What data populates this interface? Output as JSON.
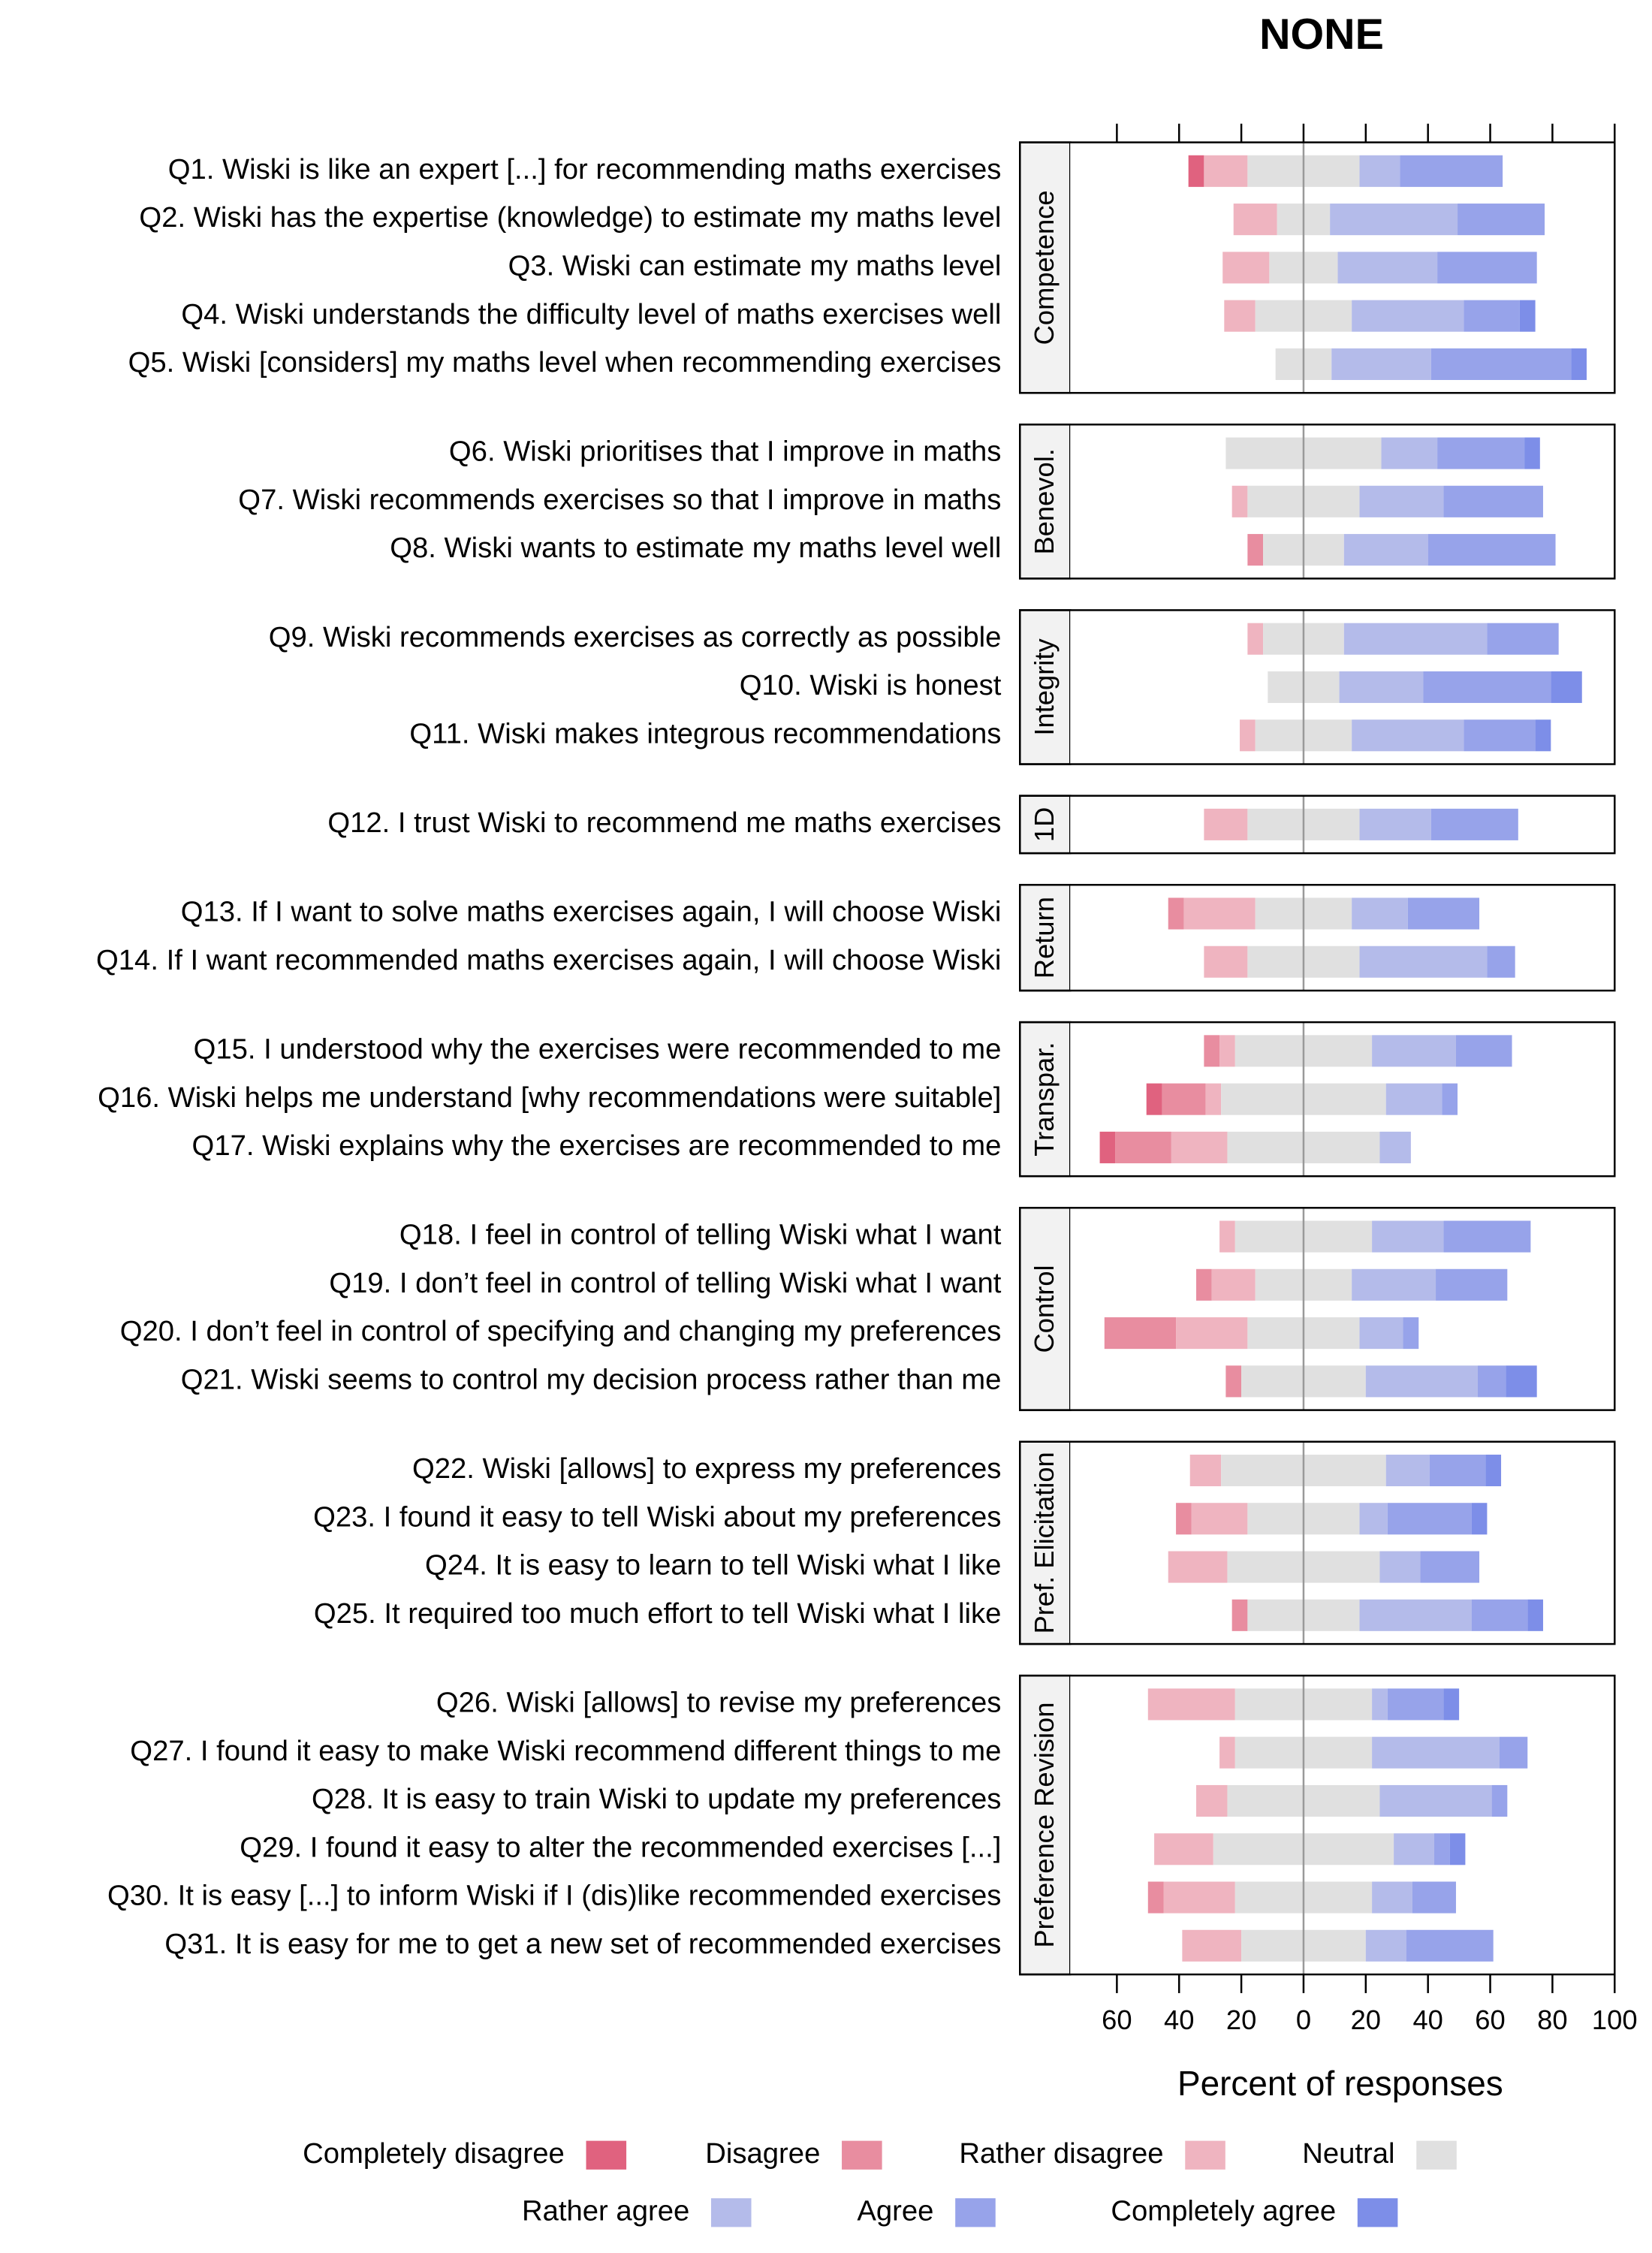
{
  "chart_data": {
    "type": "likert",
    "title": "NONE",
    "xlabel": "Percent of responses",
    "xlim": [
      -75,
      100
    ],
    "xticks": [
      {
        "value": -60,
        "label": "60"
      },
      {
        "value": -40,
        "label": "40"
      },
      {
        "value": -20,
        "label": "20"
      },
      0,
      20,
      40,
      60,
      80,
      100
    ],
    "panels": [
      {
        "label": "Competence",
        "categories": [
          "Q1. Wiski is like an expert [...] for recommending maths exercises",
          "Q2. Wiski has the expertise (knowledge) to estimate my maths level",
          "Q3. Wiski can estimate my maths level",
          "Q4. Wiski understands the difficulty level of maths exercises well",
          "Q5. Wiski [considers] my maths level when recommending exercises"
        ]
      },
      {
        "label": "Benevol.",
        "categories": [
          "Q6. Wiski prioritises that I improve in maths",
          "Q7. Wiski recommends exercises so that I improve in maths",
          "Q8. Wiski wants to estimate my maths level well"
        ]
      },
      {
        "label": "Integrity",
        "categories": [
          "Q9. Wiski recommends exercises as correctly as possible",
          "Q10. Wiski is honest",
          "Q11. Wiski makes integrous recommendations"
        ]
      },
      {
        "label": "1D",
        "categories": [
          "Q12. I trust Wiski to recommend me maths exercises"
        ]
      },
      {
        "label": "Return",
        "categories": [
          "Q13. If I want to solve maths exercises again, I will choose Wiski",
          "Q14. If I want recommended maths exercises again, I will choose Wiski"
        ]
      },
      {
        "label": "Transpar.",
        "categories": [
          "Q15. I understood why the exercises were recommended to me",
          "Q16. Wiski helps me understand [why recommendations were suitable]",
          "Q17. Wiski explains why the exercises are recommended to me"
        ]
      },
      {
        "label": "Control",
        "categories": [
          "Q18. I feel in control of telling Wiski what I want",
          "Q19. I don’t feel in control of telling Wiski what I want",
          "Q20. I don’t feel in control of specifying and changing my preferences",
          "Q21. Wiski seems to control my decision process rather than me"
        ]
      },
      {
        "label": "Pref. Elicitation",
        "categories": [
          "Q22. Wiski [allows] to express my preferences",
          "Q23. I found it easy to tell Wiski about my preferences",
          "Q24. It is easy to learn to tell Wiski what I like",
          "Q25. It required too much effort to tell Wiski what I like"
        ]
      },
      {
        "label": "Preference Revision",
        "categories": [
          "Q26. Wiski [allows] to revise my preferences",
          "Q27. I found it easy to make Wiski recommend different things to me",
          "Q28. It is easy to train Wiski to update my preferences",
          "Q29. I found it easy to alter the recommended exercises [...]",
          "Q30. It is easy [...] to inform Wiski if I (dis)like recommended exercises",
          "Q31. It is easy for me to get a new set of recommended exercises"
        ]
      }
    ],
    "series": [
      {
        "name": "Completely disagree",
        "color": "#e0627f",
        "side": "left",
        "values": [
          5,
          0,
          0,
          0,
          0,
          0,
          0,
          0,
          0,
          0,
          0,
          0,
          0,
          0,
          0,
          5,
          5,
          0,
          0,
          0,
          0,
          0,
          0,
          0,
          0,
          0,
          0,
          0,
          0,
          0,
          0
        ]
      },
      {
        "name": "Disagree",
        "color": "#e88da0",
        "side": "left",
        "values": [
          0,
          0,
          0,
          0,
          0,
          0,
          0,
          5,
          0,
          0,
          0,
          0,
          5,
          0,
          5,
          14,
          18,
          0,
          5,
          23,
          5,
          0,
          5,
          0,
          5,
          0,
          0,
          0,
          0,
          5,
          0
        ]
      },
      {
        "name": "Rather disagree",
        "color": "#efb4c0",
        "side": "left",
        "values": [
          14,
          14,
          15,
          10,
          0,
          0,
          5,
          0,
          5,
          0,
          5,
          14,
          23,
          14,
          5,
          5,
          18,
          5,
          14,
          23,
          0,
          10,
          18,
          19,
          0,
          28,
          5,
          10,
          19,
          23,
          19
        ]
      },
      {
        "name": "Neutral",
        "color": "#e0e0e0",
        "side": "center",
        "values": [
          36,
          17,
          22,
          31,
          18,
          50,
          36,
          26,
          26,
          23,
          31,
          36,
          31,
          36,
          44,
          53,
          49,
          44,
          31,
          36,
          40,
          53,
          36,
          49,
          36,
          44,
          44,
          49,
          58,
          44,
          40
        ]
      },
      {
        "name": "Rather agree",
        "color": "#b4bbea",
        "side": "right",
        "values": [
          13,
          41,
          32,
          36,
          32,
          18,
          27,
          27,
          46,
          27,
          36,
          23,
          18,
          41,
          27,
          18,
          10,
          23,
          27,
          14,
          36,
          14,
          9,
          13,
          36,
          5,
          41,
          36,
          13,
          13,
          13
        ]
      },
      {
        "name": "Agree",
        "color": "#97a3ea",
        "side": "right",
        "values": [
          33,
          28,
          32,
          18,
          45,
          28,
          32,
          41,
          23,
          41,
          23,
          28,
          23,
          9,
          18,
          5,
          0,
          28,
          23,
          5,
          9,
          18,
          27,
          19,
          18,
          18,
          9,
          5,
          5,
          14,
          28
        ]
      },
      {
        "name": "Completely agree",
        "color": "#7d8ee8",
        "side": "right",
        "values": [
          0,
          0,
          0,
          5,
          5,
          5,
          0,
          0,
          0,
          10,
          5,
          0,
          0,
          0,
          0,
          0,
          0,
          0,
          0,
          0,
          10,
          5,
          5,
          0,
          5,
          5,
          0,
          0,
          5,
          0,
          0
        ]
      }
    ]
  }
}
